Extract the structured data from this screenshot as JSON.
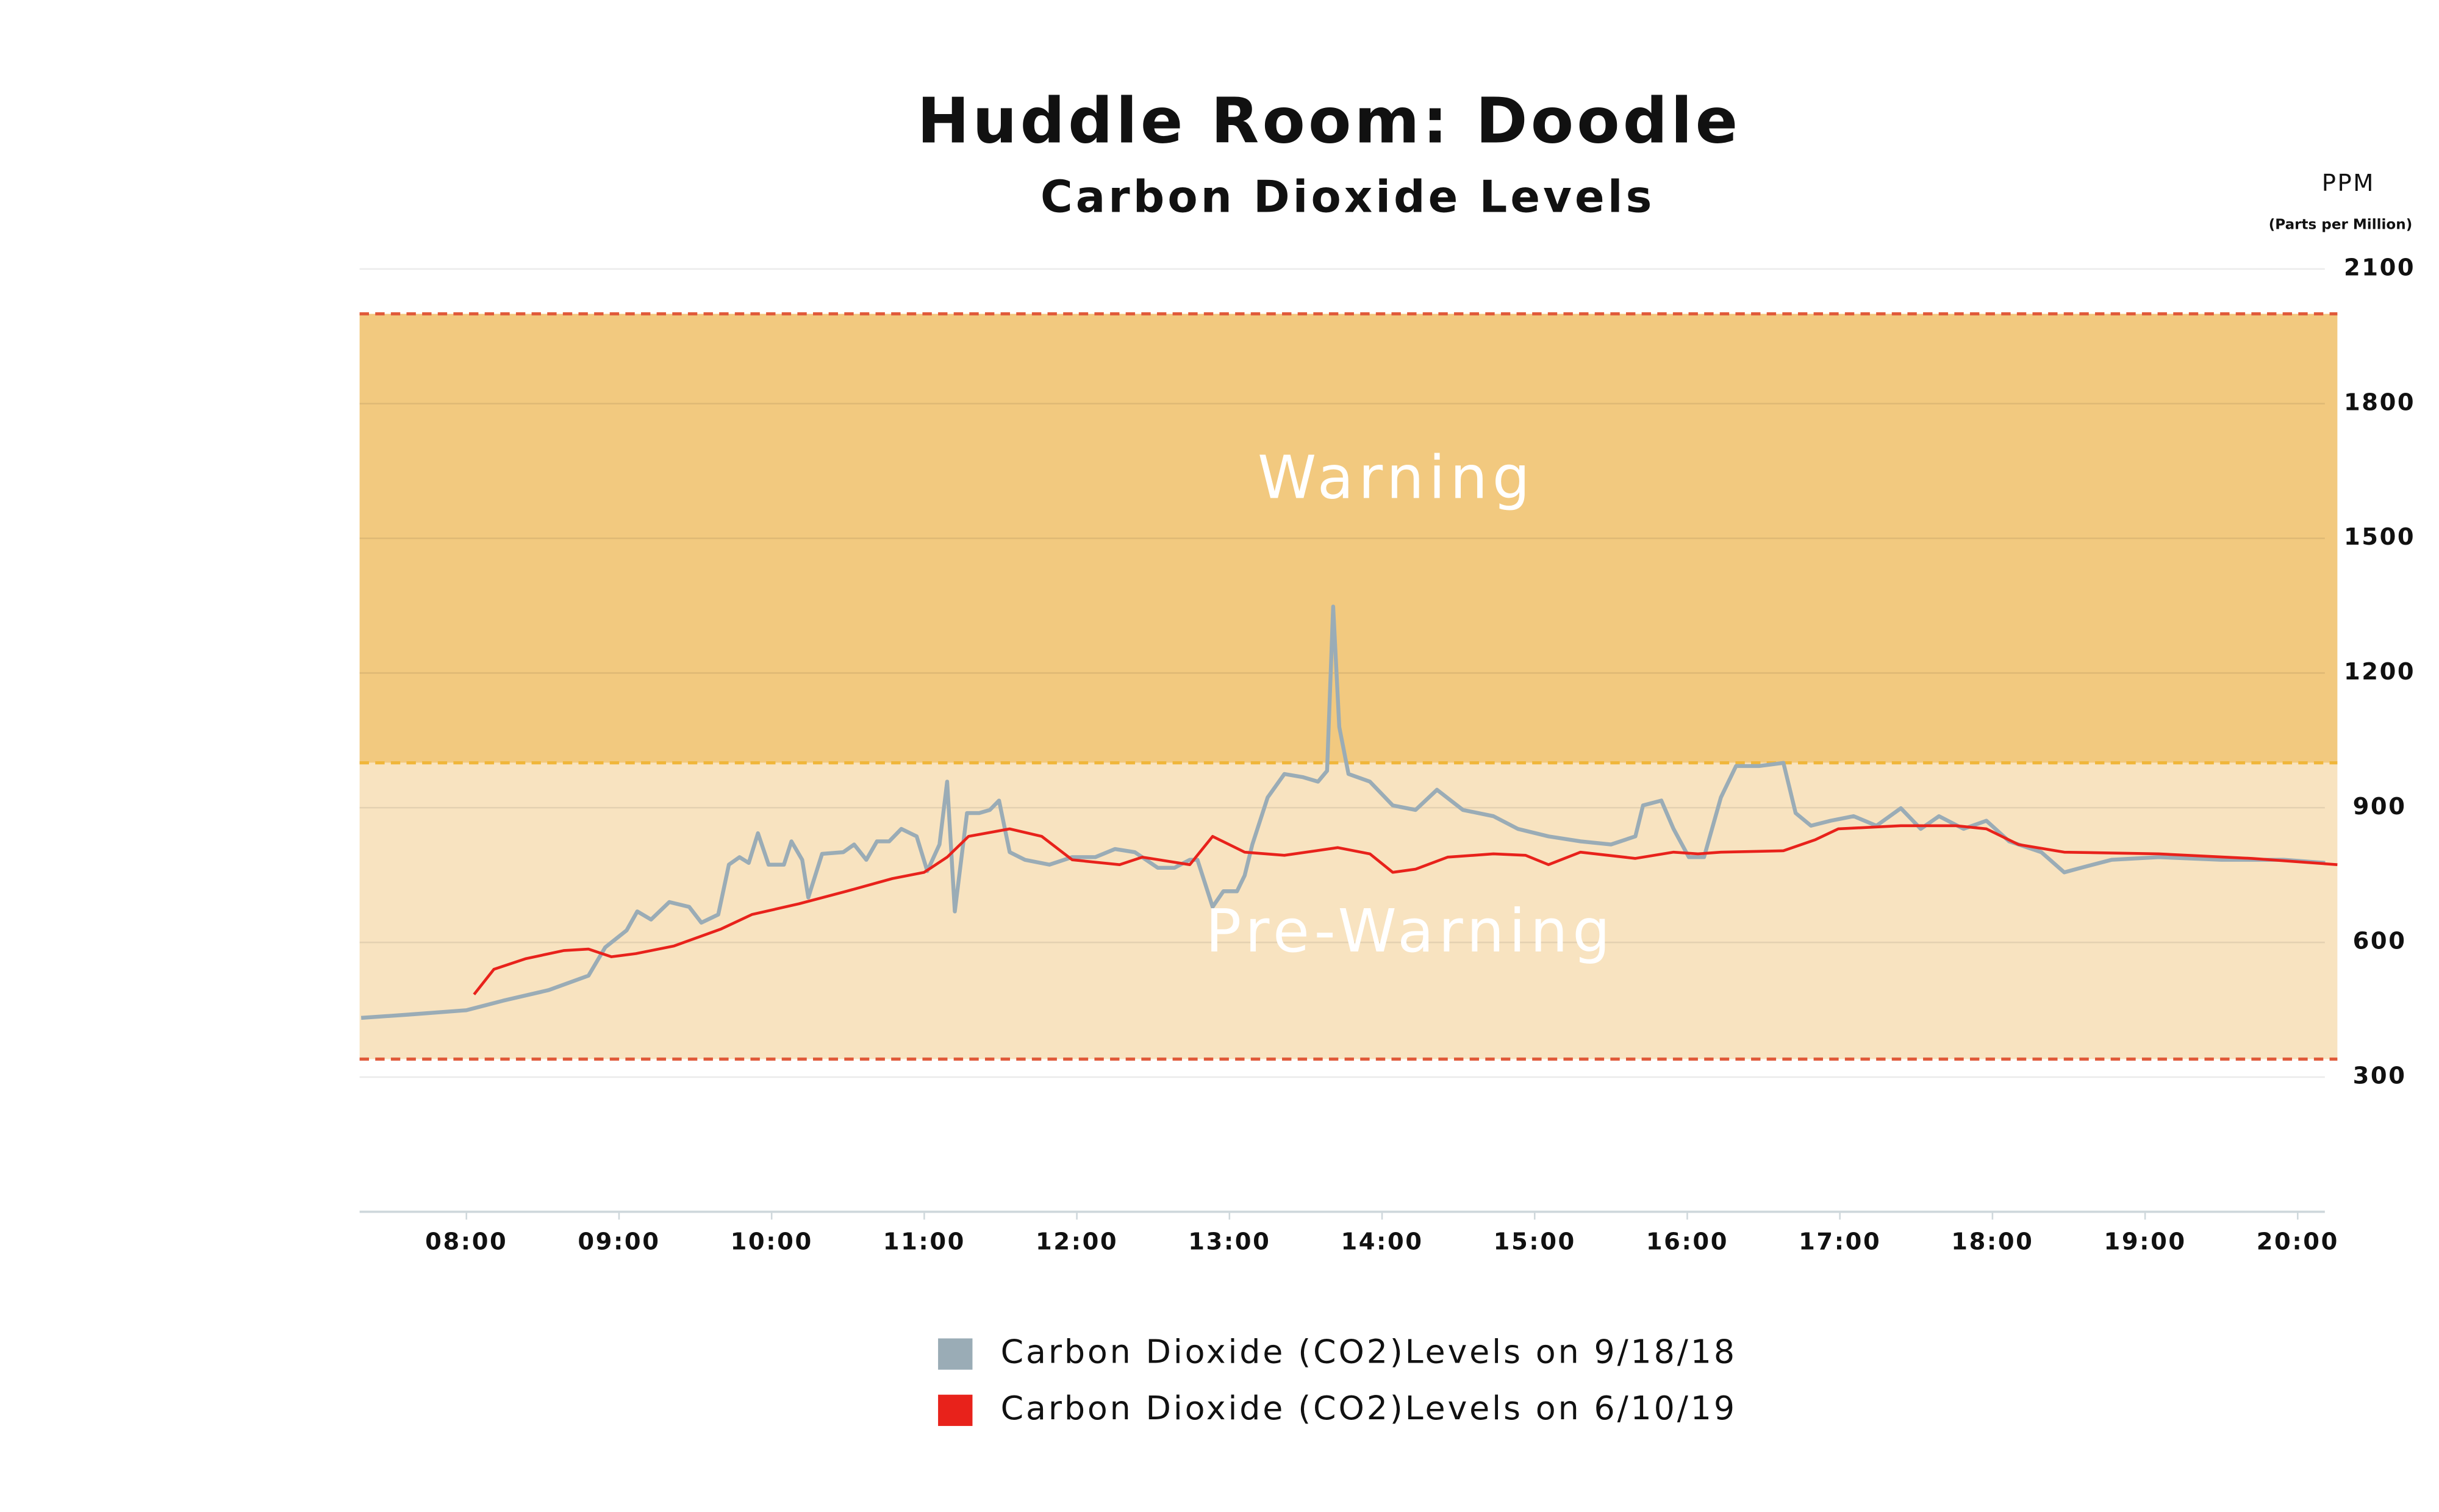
{
  "chart_data": {
    "type": "line",
    "title": "Huddle Room: Doodle",
    "subtitle": "Carbon Dioxide Levels",
    "y_label": "PPM",
    "y_sublabel": "(Parts per Million)",
    "xlim": [
      7.3,
      20.26
    ],
    "xticks": [
      {
        "value": 8,
        "label": "08:00"
      },
      {
        "value": 9,
        "label": "09:00"
      },
      {
        "value": 10,
        "label": "10:00"
      },
      {
        "value": 11,
        "label": "11:00"
      },
      {
        "value": 12,
        "label": "12:00"
      },
      {
        "value": 13,
        "label": "13:00"
      },
      {
        "value": 14,
        "label": "14:00"
      },
      {
        "value": 15,
        "label": "15:00"
      },
      {
        "value": 16,
        "label": "16:00"
      },
      {
        "value": 17,
        "label": "17:00"
      },
      {
        "value": 18,
        "label": "18:00"
      },
      {
        "value": 19,
        "label": "19:00"
      },
      {
        "value": 20,
        "label": "20:00"
      }
    ],
    "ylim": [
      0,
      2100
    ],
    "yticks": [
      2100,
      1800,
      1500,
      1200,
      900,
      600,
      300
    ],
    "grid": true,
    "bands": [
      {
        "label": "Warning",
        "from": 1000,
        "to": 2000,
        "color": "#f2c97f"
      },
      {
        "label": "Pre-Warning",
        "from": 340,
        "to": 1000,
        "color": "#f8e3c0"
      }
    ],
    "series": [
      {
        "name": "Carbon Dioxide (CO2)Levels on 9/18/18",
        "color": "#9aacb6",
        "x": [
          7.31,
          7.62,
          8.0,
          8.24,
          8.54,
          8.8,
          8.91,
          9.05,
          9.12,
          9.21,
          9.33,
          9.46,
          9.54,
          9.65,
          9.72,
          9.79,
          9.85,
          9.91,
          9.98,
          10.08,
          10.13,
          10.2,
          10.24,
          10.33,
          10.47,
          10.54,
          10.62,
          10.69,
          10.77,
          10.85,
          10.95,
          11.02,
          11.1,
          11.15,
          11.2,
          11.28,
          11.36,
          11.43,
          11.49,
          11.56,
          11.66,
          11.82,
          11.97,
          12.12,
          12.25,
          12.38,
          12.53,
          12.64,
          12.74,
          12.79,
          12.89,
          12.96,
          13.05,
          13.1,
          13.15,
          13.25,
          13.36,
          13.48,
          13.58,
          13.64,
          13.68,
          13.72,
          13.78,
          13.92,
          14.07,
          14.22,
          14.36,
          14.53,
          14.73,
          14.89,
          15.09,
          15.3,
          15.5,
          15.66,
          15.71,
          15.83,
          15.91,
          16.01,
          16.11,
          16.22,
          16.32,
          16.47,
          16.63,
          16.71,
          16.81,
          16.94,
          17.09,
          17.24,
          17.4,
          17.53,
          17.65,
          17.81,
          17.96,
          18.11,
          18.32,
          18.47,
          18.58,
          18.78,
          19.09,
          19.5,
          19.91,
          20.18
        ],
        "values": [
          432,
          439,
          449,
          470,
          494,
          526,
          589,
          627,
          669,
          651,
          690,
          679,
          644,
          662,
          773,
          790,
          777,
          843,
          773,
          773,
          825,
          784,
          700,
          797,
          801,
          818,
          784,
          825,
          825,
          853,
          836,
          759,
          818,
          958,
          669,
          888,
          888,
          895,
          916,
          801,
          784,
          773,
          790,
          790,
          808,
          801,
          766,
          766,
          784,
          784,
          679,
          714,
          714,
          749,
          818,
          923,
          975,
          968,
          958,
          982,
          1348,
          1080,
          975,
          958,
          905,
          895,
          940,
          895,
          881,
          853,
          836,
          825,
          818,
          836,
          905,
          916,
          853,
          790,
          790,
          923,
          993,
          993,
          1000,
          888,
          860,
          871,
          881,
          860,
          899,
          853,
          881,
          853,
          871,
          825,
          801,
          756,
          766,
          784,
          790,
          784,
          784,
          777
        ]
      },
      {
        "name": "Carbon Dioxide (CO2)Levels on 6/10/19",
        "color": "#e8221b",
        "x": [
          8.05,
          8.18,
          8.39,
          8.64,
          8.8,
          8.95,
          9.11,
          9.36,
          9.67,
          9.87,
          10.18,
          10.49,
          10.79,
          11.0,
          11.15,
          11.29,
          11.56,
          11.77,
          11.97,
          12.28,
          12.43,
          12.74,
          12.89,
          13.1,
          13.36,
          13.71,
          13.92,
          14.07,
          14.22,
          14.43,
          14.73,
          14.94,
          15.09,
          15.3,
          15.66,
          15.91,
          16.07,
          16.22,
          16.63,
          16.84,
          16.99,
          17.4,
          17.76,
          17.96,
          18.17,
          18.47,
          19.09,
          19.7,
          20.26
        ],
        "values": [
          484,
          540,
          564,
          582,
          585,
          568,
          575,
          592,
          630,
          662,
          686,
          714,
          742,
          756,
          790,
          836,
          853,
          836,
          784,
          773,
          790,
          773,
          836,
          801,
          794,
          811,
          797,
          756,
          763,
          790,
          797,
          794,
          773,
          801,
          787,
          801,
          797,
          801,
          804,
          829,
          853,
          860,
          860,
          853,
          818,
          801,
          797,
          787,
          773
        ]
      }
    ]
  }
}
